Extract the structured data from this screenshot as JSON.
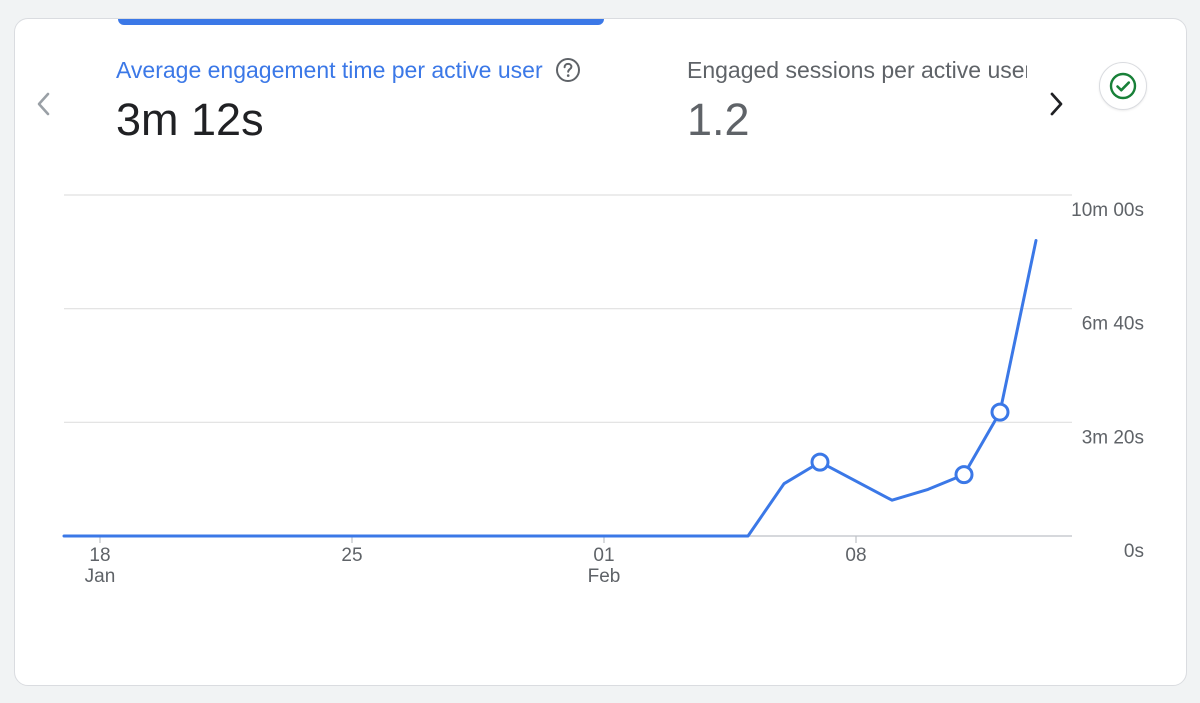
{
  "metrics": [
    {
      "label": "Average engagement time per active user",
      "value": "3m 12s",
      "active": true
    },
    {
      "label": "Engaged sessions per active user",
      "value": "1.2",
      "active": false
    }
  ],
  "icons": {
    "prev": "chevron-left-icon",
    "next": "chevron-right-icon",
    "help": "help-circle-icon",
    "status": "check-circle-icon"
  },
  "colors": {
    "accent": "#3b78e7",
    "status": "#188038",
    "grid": "#e0e0e0"
  },
  "chart_data": {
    "type": "line",
    "title": "",
    "xlabel": "",
    "ylabel": "",
    "x_ticks": [
      {
        "day": "18",
        "month": "Jan",
        "date": "2024-01-18"
      },
      {
        "day": "25",
        "month": "",
        "date": "2024-01-25"
      },
      {
        "day": "01",
        "month": "Feb",
        "date": "2024-02-01"
      },
      {
        "day": "08",
        "month": "",
        "date": "2024-02-08"
      }
    ],
    "x_range": [
      "2024-01-17",
      "2024-02-14"
    ],
    "y_ticks": [
      {
        "label": "0s",
        "seconds": 0
      },
      {
        "label": "3m 20s",
        "seconds": 200
      },
      {
        "label": "6m 40s",
        "seconds": 400
      },
      {
        "label": "10m 00s",
        "seconds": 600
      }
    ],
    "ylim": [
      0,
      600
    ],
    "grid": true,
    "series": [
      {
        "name": "",
        "points": [
          {
            "date": "2024-01-17",
            "seconds": 0
          },
          {
            "date": "2024-02-05",
            "seconds": 0
          },
          {
            "date": "2024-02-06",
            "seconds": 92
          },
          {
            "date": "2024-02-07",
            "seconds": 130,
            "marker": true
          },
          {
            "date": "2024-02-09",
            "seconds": 63
          },
          {
            "date": "2024-02-10",
            "seconds": 82
          },
          {
            "date": "2024-02-11",
            "seconds": 108,
            "marker": true
          },
          {
            "date": "2024-02-12",
            "seconds": 218,
            "marker": true
          },
          {
            "date": "2024-02-13",
            "seconds": 520
          }
        ]
      }
    ]
  }
}
